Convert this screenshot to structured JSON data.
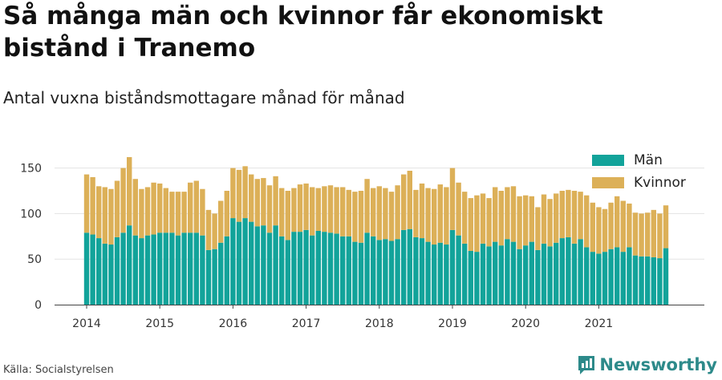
{
  "title": "Så många män och kvinnor får ekonomiskt bistånd i Tranemo",
  "subtitle": "Antal vuxna biståndsmottagare månad för månad",
  "source": "Källa: Socialstyrelsen",
  "brand": {
    "name": "Newsworthy",
    "logo_icon": "newsworthy-logo-icon"
  },
  "colors": {
    "men": "#12a39a",
    "women": "#dcb058",
    "grid": "#e3e3e3",
    "axis": "#444444"
  },
  "chart_data": {
    "type": "bar",
    "stacked": true,
    "x_start": "2014-01",
    "x_tick_labels": [
      "2014",
      "2015",
      "2016",
      "2017",
      "2018",
      "2019",
      "2020",
      "2021"
    ],
    "y_ticks": [
      0,
      50,
      100,
      150
    ],
    "ylim": [
      0,
      165
    ],
    "grid": true,
    "legend_position": "top-right",
    "series": [
      {
        "name": "Män",
        "values": [
          79,
          77,
          73,
          67,
          66,
          74,
          79,
          87,
          76,
          73,
          76,
          77,
          79,
          79,
          79,
          76,
          79,
          79,
          79,
          76,
          60,
          61,
          68,
          75,
          95,
          91,
          95,
          91,
          86,
          87,
          79,
          87,
          75,
          71,
          80,
          80,
          82,
          76,
          81,
          80,
          79,
          78,
          75,
          75,
          69,
          68,
          79,
          75,
          71,
          72,
          70,
          72,
          82,
          83,
          74,
          73,
          69,
          66,
          68,
          66,
          82,
          76,
          67,
          59,
          58,
          67,
          64,
          69,
          65,
          72,
          69,
          61,
          65,
          69,
          60,
          67,
          64,
          68,
          73,
          74,
          67,
          72,
          63,
          58,
          56,
          58,
          61,
          63,
          58,
          63,
          54,
          53,
          53,
          52,
          51,
          62
        ]
      },
      {
        "name": "Kvinnor",
        "values": [
          64,
          63,
          57,
          62,
          61,
          62,
          71,
          75,
          62,
          54,
          53,
          57,
          54,
          49,
          45,
          48,
          45,
          55,
          57,
          51,
          44,
          39,
          46,
          50,
          55,
          57,
          57,
          52,
          52,
          52,
          52,
          54,
          53,
          54,
          48,
          52,
          51,
          53,
          47,
          50,
          52,
          51,
          54,
          51,
          55,
          57,
          59,
          53,
          59,
          56,
          54,
          59,
          61,
          64,
          52,
          60,
          59,
          61,
          64,
          63,
          68,
          58,
          57,
          58,
          62,
          55,
          53,
          60,
          60,
          57,
          61,
          58,
          55,
          50,
          47,
          54,
          52,
          54,
          52,
          52,
          58,
          52,
          57,
          54,
          51,
          47,
          51,
          56,
          56,
          48,
          47,
          47,
          48,
          52,
          49,
          47
        ]
      }
    ]
  }
}
